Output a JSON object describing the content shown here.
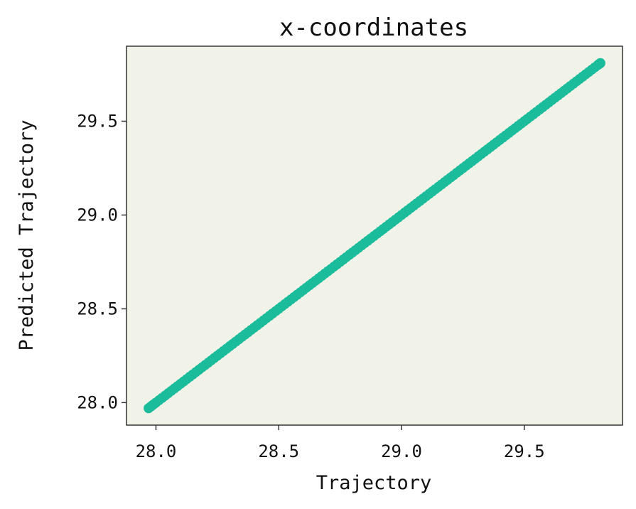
{
  "chart_data": {
    "type": "scatter",
    "title": "x-coordinates",
    "xlabel": "Trajectory",
    "ylabel": "Predicted Trajectory",
    "xlim": [
      27.88,
      29.9
    ],
    "ylim": [
      27.88,
      29.9
    ],
    "xticks": [
      28.0,
      28.5,
      29.0,
      29.5
    ],
    "yticks": [
      28.0,
      28.5,
      29.0,
      29.5
    ],
    "xtick_labels": [
      "28.0",
      "28.5",
      "29.0",
      "29.5"
    ],
    "ytick_labels": [
      "28.0",
      "28.5",
      "29.0",
      "29.5"
    ],
    "grid": false,
    "legend": "none",
    "background_color": "#f2f3e8",
    "marker_color": "#1abc9c",
    "series": [
      {
        "x": [
          27.97,
          28.0,
          28.05,
          28.1,
          28.15,
          28.2,
          28.25,
          28.3,
          28.35,
          28.4,
          28.45,
          28.5,
          28.55,
          28.6,
          28.65,
          28.7,
          28.75,
          28.8,
          28.85,
          28.9,
          28.95,
          29.0,
          29.05,
          29.1,
          29.15,
          29.2,
          29.25,
          29.3,
          29.35,
          29.4,
          29.45,
          29.5,
          29.55,
          29.6,
          29.65,
          29.7,
          29.75,
          29.8,
          29.81
        ],
        "y": [
          27.97,
          28.0,
          28.05,
          28.1,
          28.15,
          28.2,
          28.25,
          28.3,
          28.35,
          28.4,
          28.45,
          28.5,
          28.55,
          28.6,
          28.65,
          28.7,
          28.75,
          28.8,
          28.85,
          28.9,
          28.95,
          29.0,
          29.05,
          29.1,
          29.15,
          29.2,
          29.25,
          29.3,
          29.35,
          29.4,
          29.45,
          29.5,
          29.55,
          29.6,
          29.65,
          29.7,
          29.75,
          29.8,
          29.81
        ]
      }
    ]
  }
}
